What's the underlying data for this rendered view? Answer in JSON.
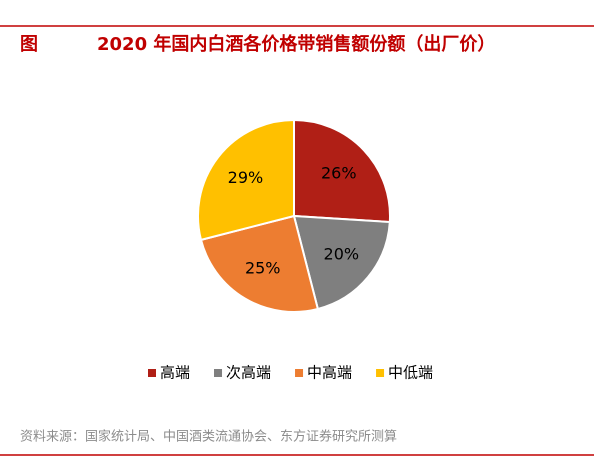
{
  "figure_label": "图",
  "source": "资料来源：国家统计局、中国酒类流通协会、东方证券研究所测算",
  "chart_data": {
    "type": "pie",
    "title": "2020 年国内白酒各价格带销售额份额（出厂价）",
    "categories": [
      "高端",
      "次高端",
      "中高端",
      "中低端"
    ],
    "values": [
      26,
      20,
      25,
      29
    ],
    "value_labels": [
      "26%",
      "20%",
      "25%",
      "29%"
    ],
    "colors": [
      "#b01f16",
      "#7f7f7f",
      "#ed7d31",
      "#ffc000"
    ],
    "legend": "bottom"
  }
}
